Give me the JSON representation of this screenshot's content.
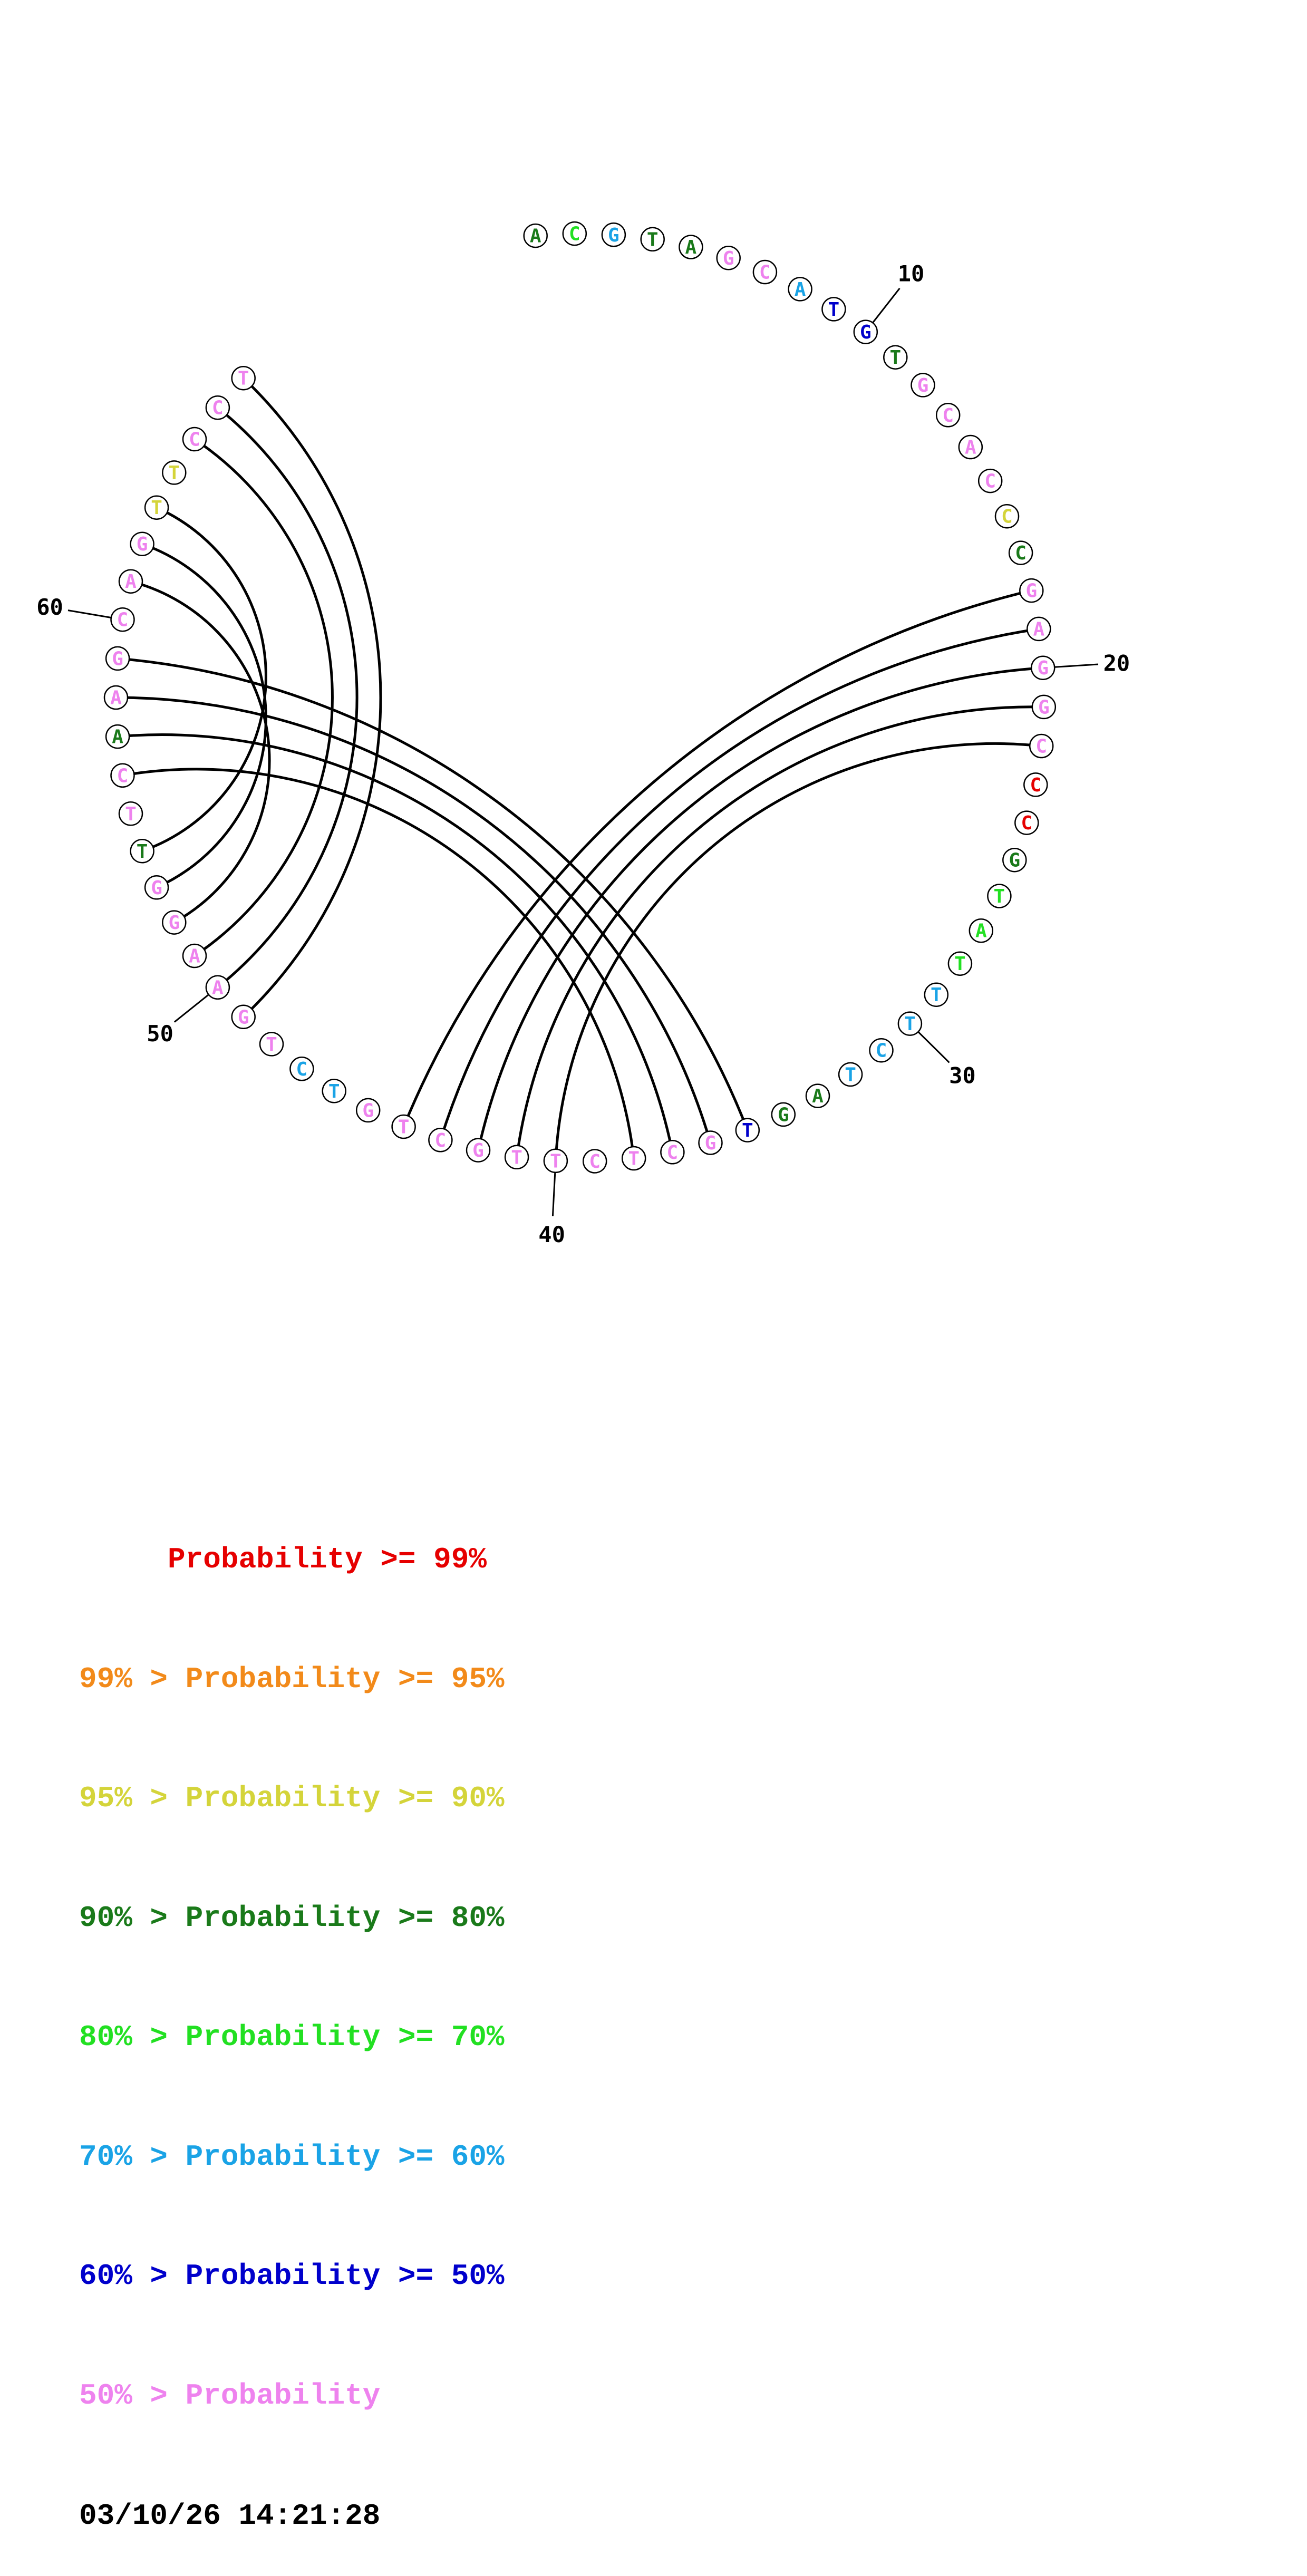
{
  "sequence": "ACGTAGCATGTGCACCCGAGGCCCGTATTTCTAGTGCTCTTGCTGTCTGAAGGTTCAAGCAGTTCCT",
  "nucleotide_colors": [
    "#1a7a1a",
    "#22e022",
    "#1aa3e6",
    "#1a7a1a",
    "#1a7a1a",
    "#ee82ee",
    "#ee82ee",
    "#1aa3e6",
    "#0000cc",
    "#0000cc",
    "#1a7a1a",
    "#ee82ee",
    "#ee82ee",
    "#ee82ee",
    "#ee82ee",
    "#d4d43a",
    "#1a7a1a",
    "#ee82ee",
    "#ee82ee",
    "#ee82ee",
    "#ee82ee",
    "#ee82ee",
    "#e60000",
    "#e60000",
    "#1a7a1a",
    "#22e022",
    "#22e022",
    "#22e022",
    "#1aa3e6",
    "#1aa3e6",
    "#1aa3e6",
    "#1aa3e6",
    "#1a7a1a",
    "#1a7a1a",
    "#0000cc",
    "#ee82ee",
    "#ee82ee",
    "#ee82ee",
    "#ee82ee",
    "#ee82ee",
    "#ee82ee",
    "#ee82ee",
    "#ee82ee",
    "#ee82ee",
    "#ee82ee",
    "#1aa3e6",
    "#1aa3e6",
    "#ee82ee",
    "#ee82ee",
    "#ee82ee",
    "#ee82ee",
    "#ee82ee",
    "#ee82ee",
    "#1a7a1a",
    "#ee82ee",
    "#ee82ee",
    "#1a7a1a",
    "#ee82ee",
    "#ee82ee",
    "#ee82ee",
    "#ee82ee",
    "#ee82ee",
    "#d4d43a",
    "#d4d43a",
    "#ee82ee",
    "#ee82ee",
    "#ee82ee"
  ],
  "base_pairs": [
    [
      18,
      44
    ],
    [
      19,
      43
    ],
    [
      20,
      42
    ],
    [
      21,
      41
    ],
    [
      22,
      40
    ],
    [
      35,
      59
    ],
    [
      36,
      58
    ],
    [
      37,
      57
    ],
    [
      38,
      56
    ],
    [
      49,
      67
    ],
    [
      50,
      66
    ],
    [
      51,
      65
    ],
    [
      52,
      61
    ],
    [
      53,
      62
    ],
    [
      54,
      63
    ]
  ],
  "position_labels": [
    {
      "index": 10,
      "text": "10"
    },
    {
      "index": 20,
      "text": "20"
    },
    {
      "index": 30,
      "text": "30"
    },
    {
      "index": 40,
      "text": "40"
    },
    {
      "index": 50,
      "text": "50"
    },
    {
      "index": 60,
      "text": "60"
    }
  ],
  "legend": [
    {
      "prefix": "     ",
      "text": "Probability >= 99%",
      "color": "#e60000"
    },
    {
      "prefix": "99% > ",
      "text": "Probability >= 95%",
      "color": "#f28a1a"
    },
    {
      "prefix": "95% > ",
      "text": "Probability >= 90%",
      "color": "#d4d43a"
    },
    {
      "prefix": "90% > ",
      "text": "Probability >= 80%",
      "color": "#1a7a1a"
    },
    {
      "prefix": "80% > ",
      "text": "Probability >= 70%",
      "color": "#22e022"
    },
    {
      "prefix": "70% > ",
      "text": "Probability >= 60%",
      "color": "#1aa3e6"
    },
    {
      "prefix": "60% > ",
      "text": "Probability >= 50%",
      "color": "#0000cc"
    },
    {
      "prefix": "50% > ",
      "text": "Probability",
      "color": "#ee82ee"
    }
  ],
  "timestamp": "03/10/26 14:21:28"
}
